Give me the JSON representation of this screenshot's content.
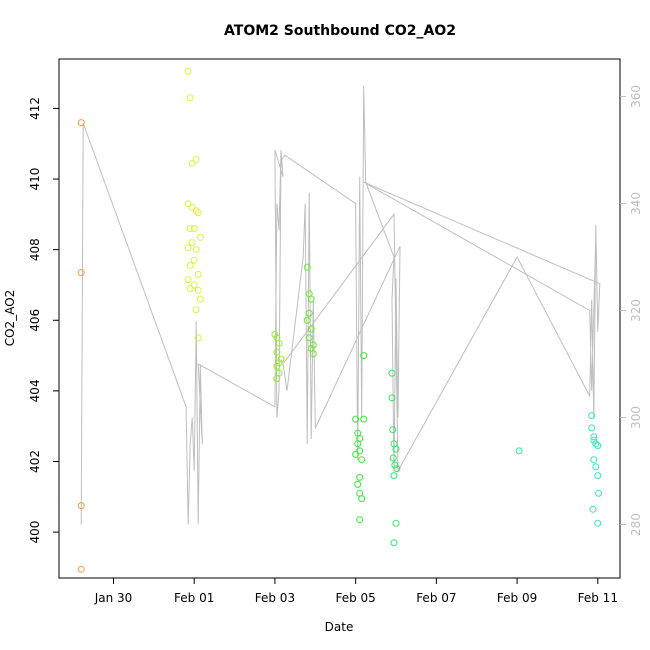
{
  "chart_data": {
    "type": "scatter",
    "title": "ATOM2 Southbound CO2_AO2",
    "xlabel": "Date",
    "ylabel": "CO2_AO2",
    "x_ticks": [
      {
        "label": "Jan 30",
        "day": 30
      },
      {
        "label": "Feb 01",
        "day": 32
      },
      {
        "label": "Feb 03",
        "day": 34
      },
      {
        "label": "Feb 05",
        "day": 36
      },
      {
        "label": "Feb 07",
        "day": 38
      },
      {
        "label": "Feb 09",
        "day": 40
      },
      {
        "label": "Feb 11",
        "day": 42
      }
    ],
    "xlim_days": [
      28.65,
      42.55
    ],
    "ylim": [
      398.7,
      413.4
    ],
    "y_ticks": [
      400,
      402,
      404,
      406,
      408,
      410,
      412
    ],
    "y2lim": [
      270,
      367
    ],
    "y2_ticks": [
      280,
      300,
      320,
      340,
      360
    ],
    "points": [
      {
        "x": 29.2,
        "y": 411.6,
        "color": "#f99a3d"
      },
      {
        "x": 29.2,
        "y": 407.35,
        "color": "#f99a3d"
      },
      {
        "x": 29.2,
        "y": 400.75,
        "color": "#f99a3d"
      },
      {
        "x": 29.2,
        "y": 398.95,
        "color": "#f99a3d"
      },
      {
        "x": 32.05,
        "y": 410.55,
        "color": "#e0f040"
      },
      {
        "x": 32.05,
        "y": 409.1,
        "color": "#e0f040"
      },
      {
        "x": 32.1,
        "y": 409.05,
        "color": "#e0f040"
      },
      {
        "x": 32.0,
        "y": 408.6,
        "color": "#e0f040"
      },
      {
        "x": 32.15,
        "y": 408.35,
        "color": "#e0f040"
      },
      {
        "x": 32.05,
        "y": 408.0,
        "color": "#e0f040"
      },
      {
        "x": 32.0,
        "y": 407.7,
        "color": "#e0f040"
      },
      {
        "x": 32.1,
        "y": 407.3,
        "color": "#e0f040"
      },
      {
        "x": 32.0,
        "y": 407.0,
        "color": "#e0f040"
      },
      {
        "x": 32.1,
        "y": 406.85,
        "color": "#e0f040"
      },
      {
        "x": 32.15,
        "y": 406.6,
        "color": "#e0f040"
      },
      {
        "x": 32.05,
        "y": 406.3,
        "color": "#e0f040"
      },
      {
        "x": 32.1,
        "y": 405.5,
        "color": "#e0f040"
      },
      {
        "x": 31.85,
        "y": 413.05,
        "color": "#e0f040"
      },
      {
        "x": 31.9,
        "y": 412.3,
        "color": "#e0f040"
      },
      {
        "x": 31.95,
        "y": 410.45,
        "color": "#e0f040"
      },
      {
        "x": 31.85,
        "y": 409.3,
        "color": "#e0f040"
      },
      {
        "x": 31.95,
        "y": 409.2,
        "color": "#e0f040"
      },
      {
        "x": 31.9,
        "y": 408.6,
        "color": "#e0f040"
      },
      {
        "x": 31.95,
        "y": 408.2,
        "color": "#e0f040"
      },
      {
        "x": 31.85,
        "y": 408.05,
        "color": "#e0f040"
      },
      {
        "x": 31.9,
        "y": 407.55,
        "color": "#e0f040"
      },
      {
        "x": 31.85,
        "y": 407.15,
        "color": "#e0f040"
      },
      {
        "x": 31.9,
        "y": 406.9,
        "color": "#e0f040"
      },
      {
        "x": 34.0,
        "y": 405.6,
        "color": "#9ae830"
      },
      {
        "x": 34.05,
        "y": 405.5,
        "color": "#9ae830"
      },
      {
        "x": 34.1,
        "y": 405.35,
        "color": "#9ae830"
      },
      {
        "x": 34.05,
        "y": 405.1,
        "color": "#9ae830"
      },
      {
        "x": 34.15,
        "y": 404.9,
        "color": "#9ae830"
      },
      {
        "x": 34.1,
        "y": 404.8,
        "color": "#9ae830"
      },
      {
        "x": 34.05,
        "y": 404.7,
        "color": "#9ae830"
      },
      {
        "x": 34.1,
        "y": 404.5,
        "color": "#9ae830"
      },
      {
        "x": 34.05,
        "y": 404.35,
        "color": "#9ae830"
      },
      {
        "x": 34.8,
        "y": 407.5,
        "color": "#6ae82a"
      },
      {
        "x": 34.85,
        "y": 406.75,
        "color": "#6ae82a"
      },
      {
        "x": 34.9,
        "y": 406.6,
        "color": "#6ae82a"
      },
      {
        "x": 34.85,
        "y": 406.2,
        "color": "#6ae82a"
      },
      {
        "x": 34.8,
        "y": 406.0,
        "color": "#6ae82a"
      },
      {
        "x": 34.9,
        "y": 405.75,
        "color": "#6ae82a"
      },
      {
        "x": 34.85,
        "y": 405.5,
        "color": "#6ae82a"
      },
      {
        "x": 34.95,
        "y": 405.3,
        "color": "#6ae82a"
      },
      {
        "x": 34.9,
        "y": 405.2,
        "color": "#6ae82a"
      },
      {
        "x": 34.95,
        "y": 405.05,
        "color": "#6ae82a"
      },
      {
        "x": 36.0,
        "y": 403.2,
        "color": "#3ae83a"
      },
      {
        "x": 36.05,
        "y": 402.8,
        "color": "#3ae83a"
      },
      {
        "x": 36.1,
        "y": 402.65,
        "color": "#3ae83a"
      },
      {
        "x": 36.05,
        "y": 402.5,
        "color": "#3ae83a"
      },
      {
        "x": 36.1,
        "y": 402.3,
        "color": "#3ae83a"
      },
      {
        "x": 36.0,
        "y": 402.2,
        "color": "#3ae83a"
      },
      {
        "x": 36.15,
        "y": 402.05,
        "color": "#3ae83a"
      },
      {
        "x": 36.1,
        "y": 401.55,
        "color": "#3ae83a"
      },
      {
        "x": 36.05,
        "y": 401.35,
        "color": "#3ae83a"
      },
      {
        "x": 36.1,
        "y": 401.1,
        "color": "#3ae83a"
      },
      {
        "x": 36.15,
        "y": 400.95,
        "color": "#3ae83a"
      },
      {
        "x": 36.1,
        "y": 400.35,
        "color": "#3ae83a"
      },
      {
        "x": 36.2,
        "y": 403.2,
        "color": "#3ae83a"
      },
      {
        "x": 36.2,
        "y": 405.0,
        "color": "#3ae83a"
      },
      {
        "x": 36.9,
        "y": 404.5,
        "color": "#30e868"
      },
      {
        "x": 36.9,
        "y": 403.8,
        "color": "#30e868"
      },
      {
        "x": 36.92,
        "y": 402.9,
        "color": "#30e868"
      },
      {
        "x": 36.95,
        "y": 402.5,
        "color": "#30e868"
      },
      {
        "x": 37.0,
        "y": 402.35,
        "color": "#30e868"
      },
      {
        "x": 36.93,
        "y": 402.1,
        "color": "#30e868"
      },
      {
        "x": 36.97,
        "y": 401.9,
        "color": "#30e868"
      },
      {
        "x": 37.02,
        "y": 401.8,
        "color": "#30e868"
      },
      {
        "x": 36.95,
        "y": 401.6,
        "color": "#30e868"
      },
      {
        "x": 37.0,
        "y": 400.25,
        "color": "#30e868"
      },
      {
        "x": 36.95,
        "y": 399.7,
        "color": "#30e868"
      },
      {
        "x": 40.05,
        "y": 402.3,
        "color": "#30e8a0"
      },
      {
        "x": 41.85,
        "y": 403.3,
        "color": "#30e8c0"
      },
      {
        "x": 41.85,
        "y": 402.95,
        "color": "#30e8c0"
      },
      {
        "x": 41.9,
        "y": 402.6,
        "color": "#30e8c0"
      },
      {
        "x": 41.95,
        "y": 402.5,
        "color": "#30e8c0"
      },
      {
        "x": 41.9,
        "y": 402.7,
        "color": "#30e8c0"
      },
      {
        "x": 42.0,
        "y": 402.45,
        "color": "#30e8c0"
      },
      {
        "x": 41.9,
        "y": 402.05,
        "color": "#30e8c0"
      },
      {
        "x": 41.95,
        "y": 401.85,
        "color": "#30e8c0"
      },
      {
        "x": 42.0,
        "y": 401.6,
        "color": "#30e8c0"
      },
      {
        "x": 42.02,
        "y": 401.1,
        "color": "#30e8c0"
      },
      {
        "x": 41.88,
        "y": 400.65,
        "color": "#30e8c0"
      },
      {
        "x": 42.0,
        "y": 400.25,
        "color": "#30e8c0"
      }
    ],
    "secondary_series": {
      "color": "#bebebe",
      "values": [
        [
          29.2,
          280
        ],
        [
          29.25,
          355
        ],
        [
          31.8,
          302
        ],
        [
          31.85,
          280
        ],
        [
          31.9,
          295
        ],
        [
          31.95,
          300
        ],
        [
          32.0,
          290
        ],
        [
          32.05,
          318
        ],
        [
          32.1,
          280
        ],
        [
          32.15,
          310
        ],
        [
          32.2,
          295
        ],
        [
          32.1,
          310
        ],
        [
          34.0,
          302
        ],
        [
          34.05,
          340
        ],
        [
          34.1,
          335
        ],
        [
          34.15,
          350
        ],
        [
          34.2,
          345
        ],
        [
          34.0,
          350
        ],
        [
          34.05,
          300
        ],
        [
          34.1,
          305
        ],
        [
          34.15,
          348
        ],
        [
          34.25,
          349
        ],
        [
          36.0,
          340
        ],
        [
          36.05,
          292
        ],
        [
          36.1,
          345
        ],
        [
          36.15,
          300
        ],
        [
          36.2,
          362
        ],
        [
          36.25,
          344
        ],
        [
          36.95,
          330
        ],
        [
          36.9,
          322
        ],
        [
          36.95,
          290
        ],
        [
          37.0,
          326
        ],
        [
          37.05,
          300
        ],
        [
          37.1,
          332
        ],
        [
          35.0,
          298
        ],
        [
          34.95,
          322
        ],
        [
          34.9,
          296
        ],
        [
          34.85,
          342
        ],
        [
          34.8,
          295
        ],
        [
          34.75,
          340
        ],
        [
          34.7,
          330
        ],
        [
          34.3,
          305
        ],
        [
          34.2,
          310
        ],
        [
          36.95,
          338
        ],
        [
          37.05,
          290
        ],
        [
          40.0,
          330
        ],
        [
          41.8,
          304
        ],
        [
          41.85,
          322
        ],
        [
          41.9,
          300
        ],
        [
          41.95,
          336
        ],
        [
          42.0,
          316
        ],
        [
          42.05,
          325
        ],
        [
          36.2,
          344
        ],
        [
          41.8,
          320
        ],
        [
          41.85,
          305
        ],
        [
          41.95,
          334
        ]
      ]
    }
  }
}
